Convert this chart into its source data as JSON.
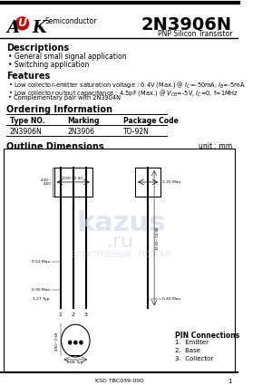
{
  "title": "2N3906N",
  "subtitle": "PNP Silicon Transistor",
  "company": "AUK",
  "company_suffix": "Semiconductor",
  "descriptions_title": "Descriptions",
  "descriptions": [
    "General small signal application",
    "Switching application"
  ],
  "features_title": "Features",
  "features": [
    "Low collector-emitter saturation voltage : 0.4V (Max.) @ IC=-50mA, IB=-5mA",
    "Low collector output capacitance : 4.5pF (Max.) @ VCB=-5V, IC=0, f=1MHz",
    "Complementary pair with 2N3904N"
  ],
  "ordering_title": "Ordering Information",
  "table_headers": [
    "Type NO.",
    "Marking",
    "Package Code"
  ],
  "table_row": [
    "2N3906N",
    "2N3906",
    "TO-92N"
  ],
  "outline_title": "Outline Dimensions",
  "unit_label": "unit : mm",
  "pin_connections_title": "PIN Connections",
  "pin_connections": [
    "1.  Emitter",
    "2.  Base",
    "3.  Collector"
  ],
  "footer": "KSD TBC039-000",
  "page": "1",
  "bg_color": "#ffffff",
  "border_color": "#000000",
  "text_color": "#000000",
  "gray_color": "#cccccc",
  "red_color": "#cc0000",
  "watermark_color": "#c8d4e8"
}
